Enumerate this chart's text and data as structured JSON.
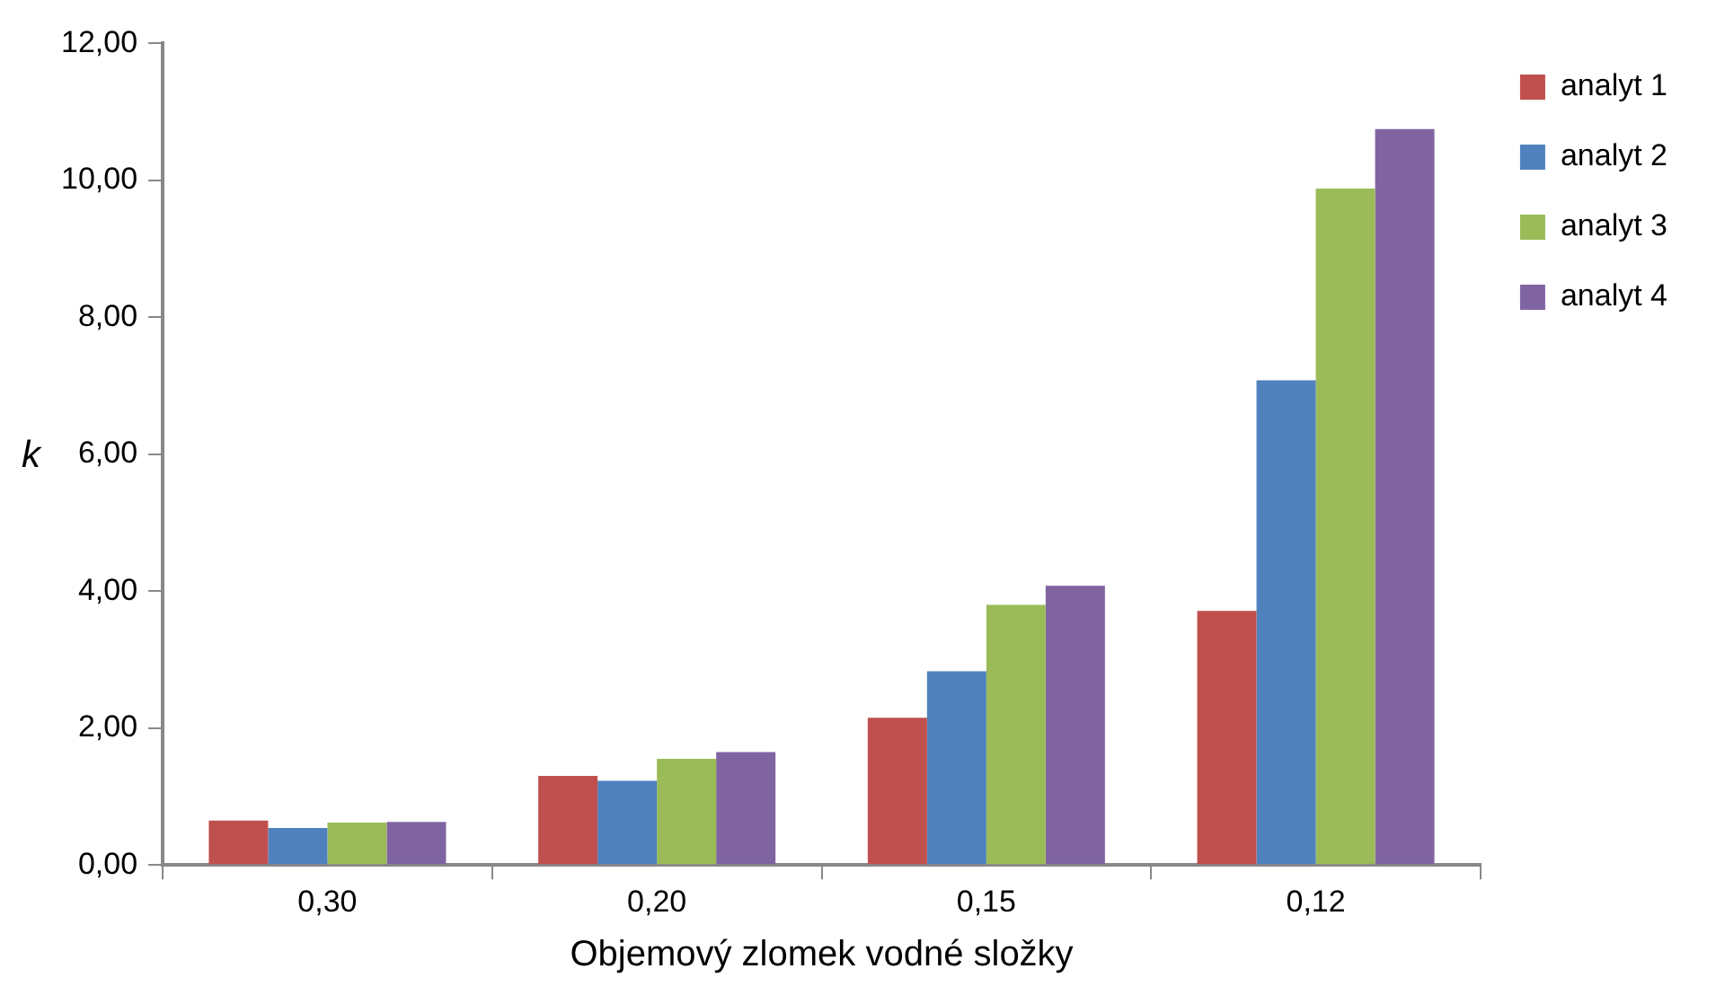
{
  "chart_data": {
    "type": "bar",
    "xlabel": "Objemový zlomek vodné složky",
    "ylabel": "k",
    "categories": [
      "0,30",
      "0,20",
      "0,15",
      "0,12"
    ],
    "series": [
      {
        "name": "analyt 1",
        "color": "#c0504d",
        "values": [
          0.65,
          1.3,
          2.15,
          3.71
        ]
      },
      {
        "name": "analyt 2",
        "color": "#4f81bd",
        "values": [
          0.54,
          1.23,
          2.83,
          7.08
        ]
      },
      {
        "name": "analyt 3",
        "color": "#9bbb59",
        "values": [
          0.62,
          1.55,
          3.8,
          9.88
        ]
      },
      {
        "name": "analyt 4",
        "color": "#8064a2",
        "values": [
          0.63,
          1.65,
          4.08,
          10.75
        ]
      }
    ],
    "ylim": [
      0,
      12
    ],
    "yticks": [
      {
        "value": 0,
        "label": "0,00"
      },
      {
        "value": 2,
        "label": "2,00"
      },
      {
        "value": 4,
        "label": "4,00"
      },
      {
        "value": 6,
        "label": "6,00"
      },
      {
        "value": 8,
        "label": "8,00"
      },
      {
        "value": 10,
        "label": "10,00"
      },
      {
        "value": 12,
        "label": "12,00"
      }
    ],
    "grid": false,
    "legend": "right"
  }
}
